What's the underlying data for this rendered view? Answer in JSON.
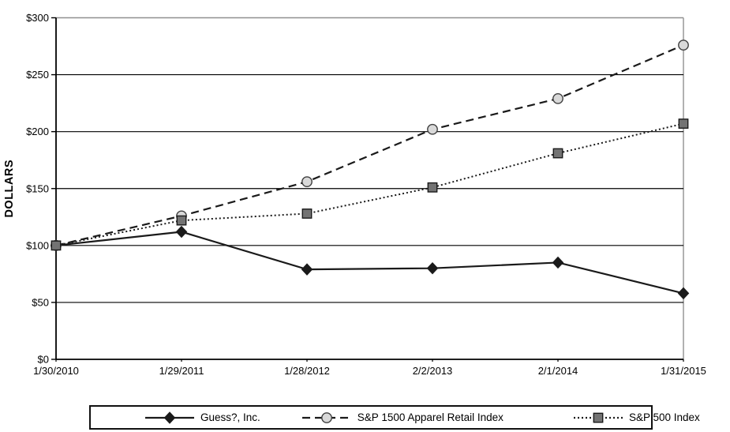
{
  "colors": {
    "line": "#1a1a1a",
    "grid": "#000000",
    "plot_border": "#909090",
    "circle_fill": "#d9d9d9",
    "square_fill": "#737373",
    "diamond_fill": "#1a1a1a",
    "background": "#ffffff"
  },
  "chart_data": {
    "type": "line",
    "title": "",
    "xlabel": "",
    "ylabel": "DOLLARS",
    "ylim": [
      0,
      300
    ],
    "grid": true,
    "legend_position": "bottom",
    "y_ticks": [
      {
        "v": 0,
        "label": "$0"
      },
      {
        "v": 50,
        "label": "$50"
      },
      {
        "v": 100,
        "label": "$100"
      },
      {
        "v": 150,
        "label": "$150"
      },
      {
        "v": 200,
        "label": "$200"
      },
      {
        "v": 250,
        "label": "$250"
      },
      {
        "v": 300,
        "label": "$300"
      }
    ],
    "categories": [
      "1/30/2010",
      "1/29/2011",
      "1/28/2012",
      "2/2/2013",
      "2/1/2014",
      "1/31/2015"
    ],
    "series": [
      {
        "name": "Guess?, Inc.",
        "marker": "diamond",
        "line_style": "solid",
        "color": "#1a1a1a",
        "marker_fill": "#1a1a1a",
        "values": [
          100,
          112,
          79,
          80,
          85,
          58
        ]
      },
      {
        "name": "S&P 1500 Apparel Retail Index",
        "marker": "circle",
        "line_style": "dashed",
        "color": "#1a1a1a",
        "marker_fill": "#d9d9d9",
        "values": [
          100,
          126,
          156,
          202,
          229,
          276
        ]
      },
      {
        "name": "S&P 500 Index",
        "marker": "square",
        "line_style": "dotted",
        "color": "#1a1a1a",
        "marker_fill": "#737373",
        "values": [
          100,
          122,
          128,
          151,
          181,
          207
        ]
      }
    ]
  }
}
